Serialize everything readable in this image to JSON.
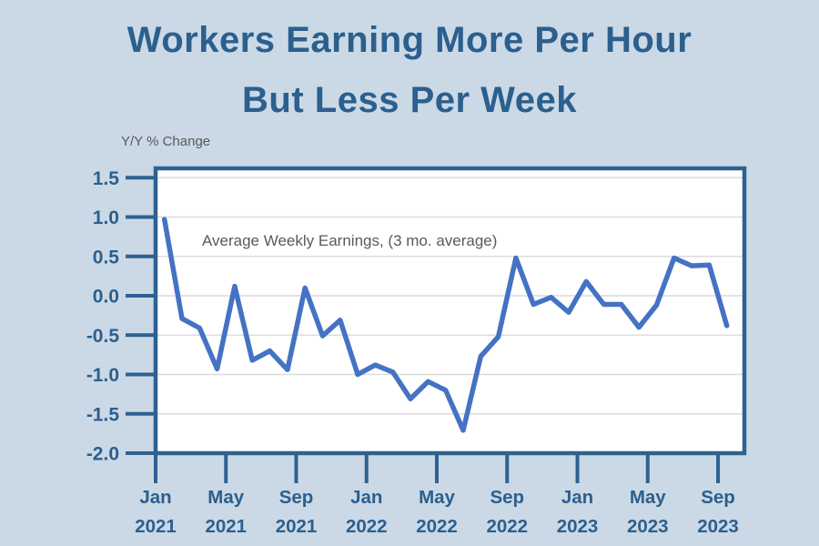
{
  "title": {
    "line1": "Workers Earning More Per Hour",
    "line2": "But Less Per Week"
  },
  "axis_note": "Y/Y % Change",
  "series_label": "Average Weekly Earnings, (3 mo. average)",
  "colors": {
    "background": "#CBD9E6",
    "title_text": "#2B5F8E",
    "axis_text": "#2B5F8E",
    "frame": "#2E6191",
    "plot_background": "#FFFFFF",
    "gridline": "#DCDCDC",
    "line": "#4472C4",
    "note_text": "#595959"
  },
  "chart_data": {
    "type": "line",
    "title": "Workers Earning More Per Hour But Less Per Week",
    "xlabel": "",
    "ylabel": "Y/Y % Change",
    "ylim": [
      -2.0,
      1.5
    ],
    "grid": true,
    "legend_position": "inside-top-left",
    "x": [
      "Jan 2021",
      "Feb 2021",
      "Mar 2021",
      "Apr 2021",
      "May 2021",
      "Jun 2021",
      "Jul 2021",
      "Aug 2021",
      "Sep 2021",
      "Oct 2021",
      "Nov 2021",
      "Dec 2021",
      "Jan 2022",
      "Feb 2022",
      "Mar 2022",
      "Apr 2022",
      "May 2022",
      "Jun 2022",
      "Jul 2022",
      "Aug 2022",
      "Sep 2022",
      "Oct 2022",
      "Nov 2022",
      "Dec 2022",
      "Jan 2023",
      "Feb 2023",
      "Mar 2023",
      "Apr 2023",
      "May 2023",
      "Jun 2023",
      "Jul 2023",
      "Aug 2023",
      "Sep 2023"
    ],
    "series": [
      {
        "name": "Average Weekly Earnings, (3 mo. average)",
        "values": [
          0.97,
          -0.29,
          -0.41,
          -0.93,
          0.12,
          -0.82,
          -0.7,
          -0.94,
          0.1,
          -0.51,
          -0.31,
          -1.0,
          -0.88,
          -0.97,
          -1.31,
          -1.09,
          -1.2,
          -1.71,
          -0.77,
          -0.52,
          0.48,
          -0.11,
          -0.02,
          -0.21,
          0.18,
          -0.11,
          -0.11,
          -0.4,
          -0.12,
          0.48,
          0.38,
          0.39,
          -0.38
        ]
      }
    ],
    "yticks": {
      "values": [
        1.5,
        1.0,
        0.5,
        0.0,
        -0.5,
        -1.0,
        -1.5,
        -2.0
      ],
      "labels": [
        "1.5",
        "1.0",
        "0.5",
        "0.0",
        "-0.5",
        "-1.0",
        "-1.5",
        "-2.0"
      ]
    },
    "xticks": {
      "category_indexes": [
        0,
        4,
        8,
        12,
        16,
        20,
        24,
        28,
        32
      ],
      "labels": [
        [
          "Jan",
          "2021"
        ],
        [
          "May",
          "2021"
        ],
        [
          "Sep",
          "2021"
        ],
        [
          "Jan",
          "2022"
        ],
        [
          "May",
          "2022"
        ],
        [
          "Sep",
          "2022"
        ],
        [
          "Jan",
          "2023"
        ],
        [
          "May",
          "2023"
        ],
        [
          "Sep",
          "2023"
        ]
      ]
    }
  }
}
